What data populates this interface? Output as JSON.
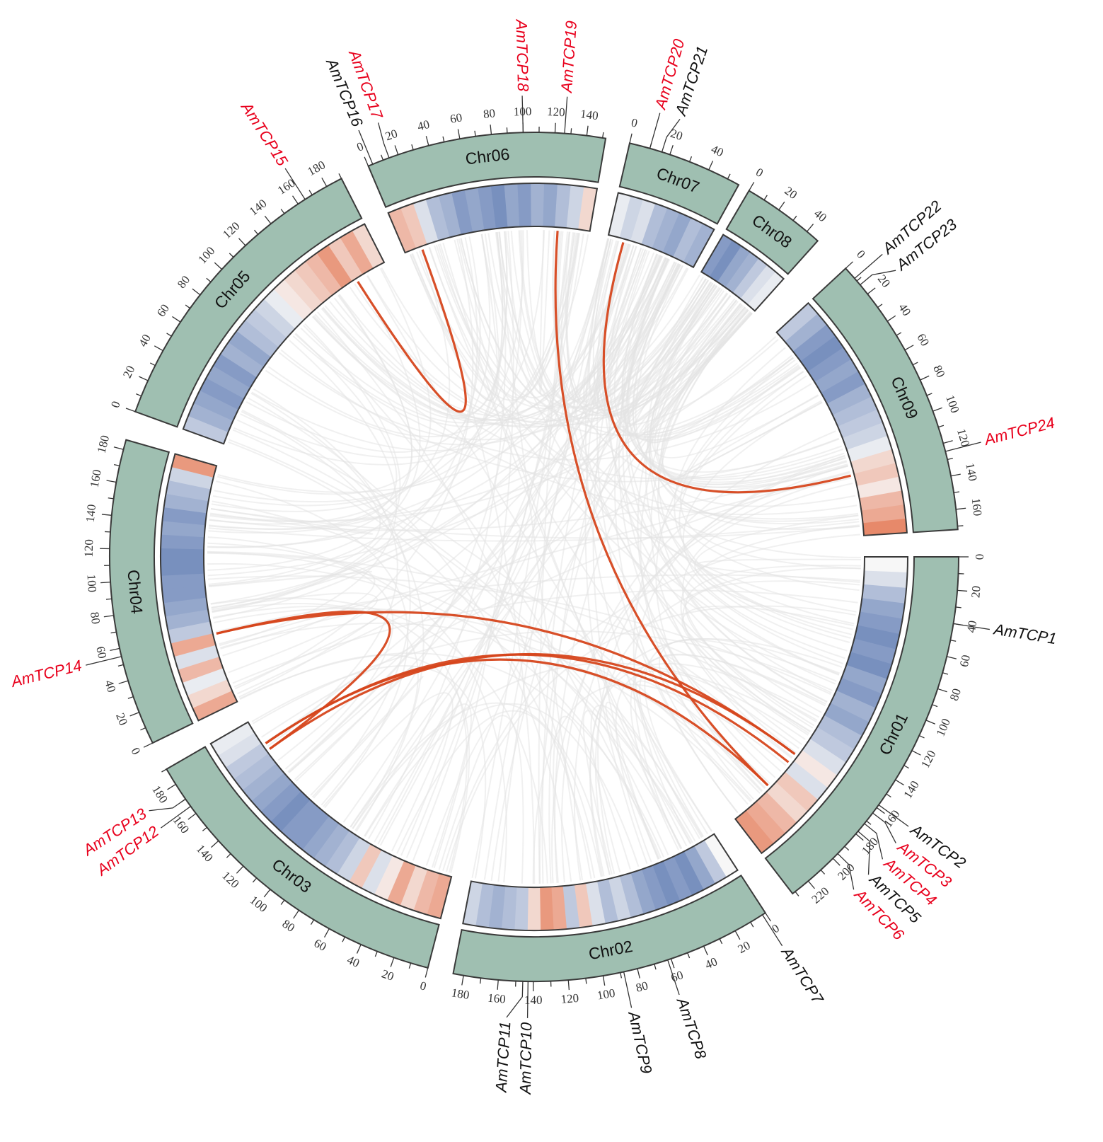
{
  "colors": {
    "band": "#9fbfb1",
    "highlight_gene": "#e8001c",
    "normal_gene": "#111111",
    "link": "#d6461c",
    "background_link": "#e4e4e4",
    "heat_low": "#6a84b8",
    "heat_mid": "#f7f7f7",
    "heat_high": "#e05a2e"
  },
  "chromosomes": [
    {
      "name": "Chr01",
      "length": 232,
      "ticks": [
        0,
        20,
        40,
        60,
        80,
        100,
        120,
        140,
        160,
        180,
        200,
        220
      ],
      "density": [
        0,
        -0.2,
        -0.5,
        -0.7,
        -0.8,
        -0.9,
        -0.8,
        -0.9,
        -0.7,
        -0.8,
        -0.6,
        -0.7,
        -0.5,
        -0.4,
        -0.2,
        0.1,
        -0.2,
        0.3,
        0.2,
        0.4,
        0.5,
        0.6
      ]
    },
    {
      "name": "Chr02",
      "length": 186,
      "ticks": [
        0,
        20,
        40,
        60,
        80,
        100,
        120,
        140,
        160,
        180
      ],
      "density": [
        0,
        -0.4,
        -0.7,
        -0.9,
        -0.8,
        -0.9,
        -0.8,
        -0.7,
        -0.5,
        -0.3,
        -0.5,
        -0.2,
        0.3,
        -0.4,
        0.5,
        0.6,
        0.2,
        -0.4,
        -0.5,
        -0.6,
        -0.5,
        -0.3
      ]
    },
    {
      "name": "Chr03",
      "length": 190,
      "ticks": [
        0,
        20,
        40,
        60,
        80,
        100,
        120,
        140,
        160,
        180
      ],
      "density": [
        0.5,
        0.4,
        0.2,
        0.5,
        0.1,
        -0.2,
        0.3,
        -0.3,
        -0.5,
        -0.6,
        -0.7,
        -0.8,
        -0.8,
        -0.9,
        -0.8,
        -0.7,
        -0.6,
        -0.5,
        -0.4,
        -0.2,
        -0.1
      ]
    },
    {
      "name": "Chr04",
      "length": 186,
      "ticks": [
        0,
        20,
        40,
        60,
        80,
        100,
        120,
        140,
        160,
        180
      ],
      "density": [
        0.5,
        0.2,
        -0.1,
        0.4,
        -0.2,
        0.5,
        -0.4,
        -0.6,
        -0.7,
        -0.8,
        -0.8,
        -0.9,
        -0.9,
        -0.8,
        -0.7,
        -0.8,
        -0.6,
        -0.5,
        -0.3,
        0.6
      ]
    },
    {
      "name": "Chr05",
      "length": 190,
      "ticks": [
        0,
        20,
        40,
        60,
        80,
        100,
        120,
        140,
        160,
        180
      ],
      "density": [
        -0.4,
        -0.6,
        -0.7,
        -0.8,
        -0.7,
        -0.8,
        -0.6,
        -0.7,
        -0.5,
        -0.4,
        -0.3,
        -0.1,
        0.1,
        0.2,
        0.3,
        0.4,
        0.6,
        0.3,
        0.5,
        0.2
      ]
    },
    {
      "name": "Chr06",
      "length": 152,
      "ticks": [
        0,
        20,
        40,
        60,
        80,
        100,
        120,
        140
      ],
      "density": [
        0.4,
        0.3,
        -0.2,
        -0.5,
        -0.6,
        -0.8,
        -0.7,
        -0.8,
        -0.9,
        -0.7,
        -0.8,
        -0.6,
        -0.7,
        -0.5,
        -0.3,
        0.2
      ]
    },
    {
      "name": "Chr07",
      "length": 56,
      "ticks": [
        0,
        20,
        40
      ],
      "density": [
        -0.1,
        -0.3,
        -0.2,
        -0.5,
        -0.6,
        -0.7,
        -0.5,
        -0.6
      ]
    },
    {
      "name": "Chr08",
      "length": 48,
      "ticks": [
        0,
        20,
        40
      ],
      "density": [
        -0.8,
        -0.9,
        -0.7,
        -0.6,
        -0.4,
        -0.2,
        -0.1
      ]
    },
    {
      "name": "Chr09",
      "length": 172,
      "ticks": [
        0,
        20,
        40,
        60,
        80,
        100,
        120,
        140,
        160
      ],
      "density": [
        -0.4,
        -0.6,
        -0.8,
        -0.9,
        -0.8,
        -0.7,
        -0.8,
        -0.6,
        -0.5,
        -0.4,
        -0.3,
        -0.1,
        0.2,
        0.3,
        0.1,
        0.4,
        0.5,
        0.7
      ]
    }
  ],
  "genes": [
    {
      "name": "AmTCP1",
      "chr": "Chr01",
      "pos": 40,
      "highlight": false
    },
    {
      "name": "AmTCP2",
      "chr": "Chr01",
      "pos": 158,
      "highlight": false
    },
    {
      "name": "AmTCP3",
      "chr": "Chr01",
      "pos": 164,
      "highlight": true
    },
    {
      "name": "AmTCP4",
      "chr": "Chr01",
      "pos": 172,
      "highlight": true
    },
    {
      "name": "AmTCP5",
      "chr": "Chr01",
      "pos": 178,
      "highlight": false
    },
    {
      "name": "AmTCP6",
      "chr": "Chr01",
      "pos": 196,
      "highlight": true
    },
    {
      "name": "AmTCP7",
      "chr": "Chr02",
      "pos": 2,
      "highlight": false
    },
    {
      "name": "AmTCP8",
      "chr": "Chr02",
      "pos": 62,
      "highlight": false
    },
    {
      "name": "AmTCP9",
      "chr": "Chr02",
      "pos": 88,
      "highlight": false
    },
    {
      "name": "AmTCP10",
      "chr": "Chr02",
      "pos": 143,
      "highlight": false
    },
    {
      "name": "AmTCP11",
      "chr": "Chr02",
      "pos": 146,
      "highlight": false
    },
    {
      "name": "AmTCP12",
      "chr": "Chr03",
      "pos": 165,
      "highlight": true
    },
    {
      "name": "AmTCP13",
      "chr": "Chr03",
      "pos": 170,
      "highlight": true
    },
    {
      "name": "AmTCP14",
      "chr": "Chr04",
      "pos": 55,
      "highlight": true
    },
    {
      "name": "AmTCP15",
      "chr": "Chr05",
      "pos": 165,
      "highlight": true
    },
    {
      "name": "AmTCP16",
      "chr": "Chr06",
      "pos": 3,
      "highlight": false
    },
    {
      "name": "AmTCP17",
      "chr": "Chr06",
      "pos": 14,
      "highlight": true
    },
    {
      "name": "AmTCP18",
      "chr": "Chr06",
      "pos": 100,
      "highlight": true
    },
    {
      "name": "AmTCP19",
      "chr": "Chr06",
      "pos": 126,
      "highlight": true
    },
    {
      "name": "AmTCP20",
      "chr": "Chr07",
      "pos": 10,
      "highlight": true
    },
    {
      "name": "AmTCP21",
      "chr": "Chr07",
      "pos": 16,
      "highlight": false
    },
    {
      "name": "AmTCP22",
      "chr": "Chr09",
      "pos": 8,
      "highlight": false
    },
    {
      "name": "AmTCP23",
      "chr": "Chr09",
      "pos": 13,
      "highlight": false
    },
    {
      "name": "AmTCP24",
      "chr": "Chr09",
      "pos": 125,
      "highlight": true
    }
  ],
  "links": [
    [
      "AmTCP15",
      "AmTCP17"
    ],
    [
      "AmTCP19",
      "AmTCP6"
    ],
    [
      "AmTCP20",
      "AmTCP24"
    ],
    [
      "AmTCP14",
      "AmTCP3"
    ],
    [
      "AmTCP14",
      "AmTCP12"
    ],
    [
      "AmTCP13",
      "AmTCP4"
    ],
    [
      "AmTCP12",
      "AmTCP3"
    ],
    [
      "AmTCP13",
      "AmTCP6"
    ]
  ]
}
